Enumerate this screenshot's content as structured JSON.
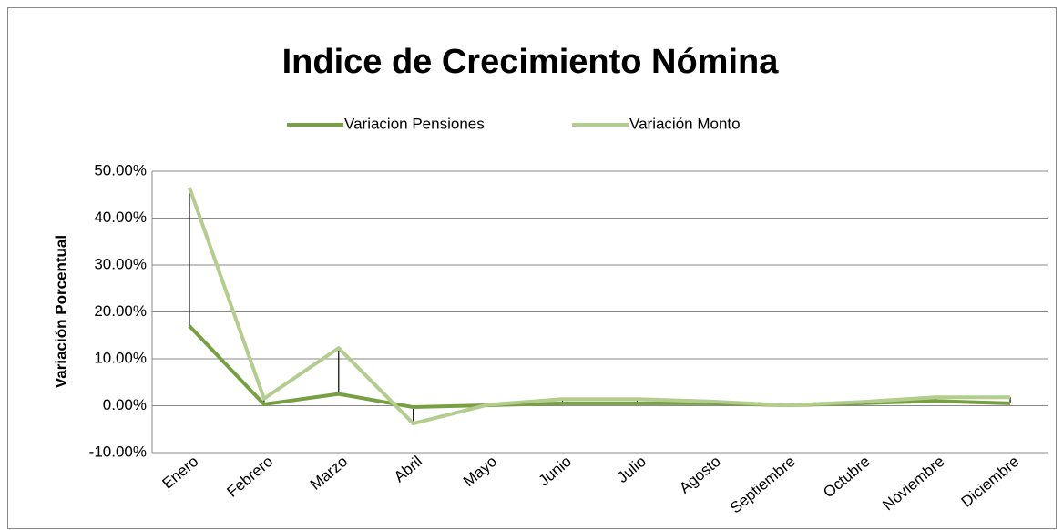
{
  "chart_data": {
    "type": "line",
    "title": "Indice de Crecimiento Nómina",
    "y_label": "Variación Porcentual",
    "categories": [
      "Enero",
      "Febrero",
      "Marzo",
      "Abril",
      "Mayo",
      "Junio",
      "Julio",
      "Agosto",
      "Septiembre",
      "Octubre",
      "Noviembre",
      "Diciembre"
    ],
    "series": [
      {
        "name": "Variacion Pensiones",
        "color": "#77a043",
        "values": [
          17,
          0.3,
          2.5,
          -0.3,
          0.1,
          0.5,
          0.5,
          0.5,
          0.1,
          0.5,
          1.0,
          0.5
        ]
      },
      {
        "name": "Variación Monto",
        "color": "#b2cd8d",
        "values": [
          46.5,
          1.5,
          12.3,
          -3.8,
          0.2,
          1.4,
          1.4,
          0.9,
          0.1,
          0.8,
          1.8,
          1.8
        ]
      }
    ],
    "high_low_lines": true,
    "ylim": [
      -10,
      50
    ],
    "yticks": [
      {
        "value": -10,
        "label": "-10.00%"
      },
      {
        "value": 0,
        "label": "0.00%"
      },
      {
        "value": 10,
        "label": "10.00%"
      },
      {
        "value": 20,
        "label": "20.00%"
      },
      {
        "value": 30,
        "label": "30.00%"
      },
      {
        "value": 40,
        "label": "40.00%"
      },
      {
        "value": 50,
        "label": "50.00%"
      }
    ],
    "grid": true,
    "legend": "top"
  }
}
